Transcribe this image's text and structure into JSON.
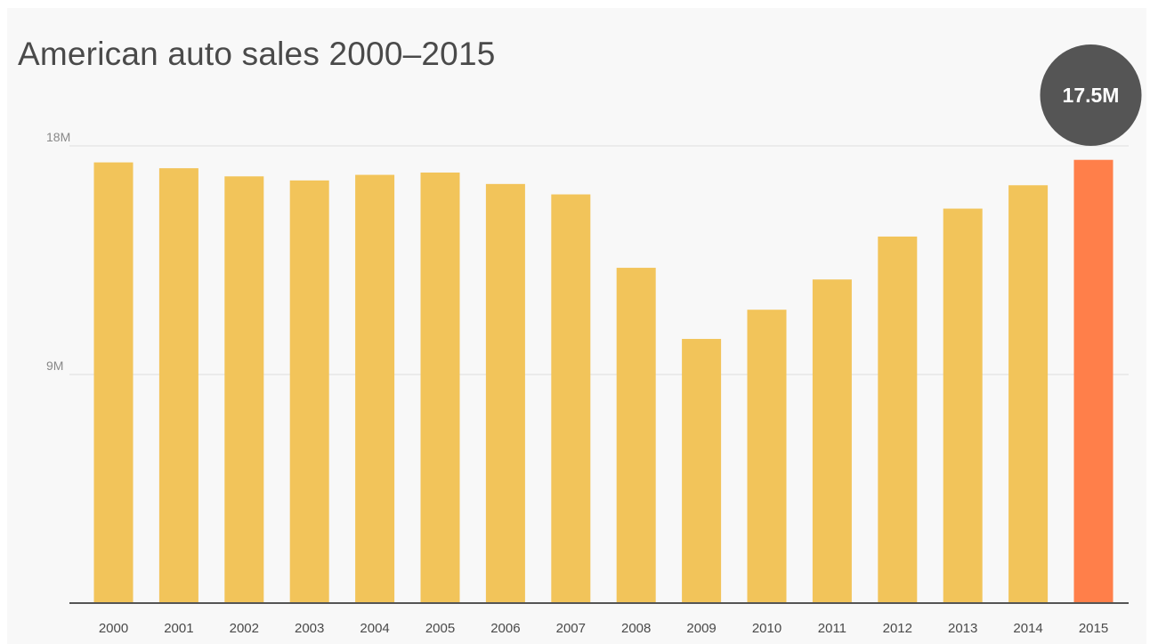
{
  "chart_data": {
    "type": "bar",
    "title": "American auto sales 2000–2015",
    "xlabel": "",
    "ylabel": "",
    "categories": [
      "2000",
      "2001",
      "2002",
      "2003",
      "2004",
      "2005",
      "2006",
      "2007",
      "2008",
      "2009",
      "2010",
      "2011",
      "2012",
      "2013",
      "2014",
      "2015"
    ],
    "values": [
      17.35,
      17.12,
      16.8,
      16.64,
      16.86,
      16.95,
      16.5,
      16.09,
      13.2,
      10.4,
      11.55,
      12.74,
      14.43,
      15.53,
      16.45,
      17.45
    ],
    "ylim": [
      0,
      18
    ],
    "yticks": [
      9,
      18
    ],
    "ytick_labels": [
      "9M",
      "18M"
    ],
    "grid": true,
    "bar_color": "#f2c45a",
    "highlight_index": 15,
    "highlight_color": "#ff7f4a",
    "callout": {
      "label": "17.5M",
      "color": "#555555"
    }
  }
}
